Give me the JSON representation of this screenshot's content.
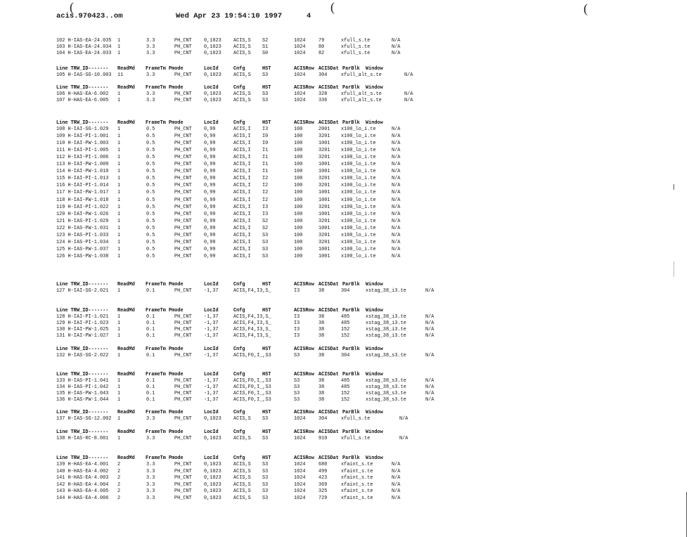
{
  "page_header": {
    "filename": "acis.970423..om",
    "datetime": "Wed Apr 23 19:54:10 1997",
    "page_number": "4"
  },
  "column_headers": [
    "Line TRW_ID-------",
    "ReadMd",
    "FrameTm",
    "Pmode",
    "LocId",
    "Cnfg",
    "HST",
    "ACISRow",
    "ACISDat",
    "ParBlk",
    "Window"
  ],
  "blocks": [
    {
      "header": false,
      "rows": [
        [
          "102 H-IAS-EA-24.035",
          "1",
          "3.3",
          "PH_CNT",
          "0,1023",
          "ACIS,S",
          "S2",
          "1024",
          "79",
          "xfull_s.te",
          "N/A"
        ],
        [
          "103 H-IAS-EA-24.034",
          "1",
          "3.3",
          "PH_CNT",
          "0,1023",
          "ACIS,S",
          "S1",
          "1024",
          "80",
          "xfull_s.te",
          "N/A"
        ],
        [
          "104 H-IAS-EA-24.033",
          "1",
          "3.3",
          "PH_CNT",
          "0,1023",
          "ACIS,S",
          "S0",
          "1024",
          "82",
          "xfull_s.te",
          "N/A"
        ]
      ]
    },
    {
      "header": true,
      "rows": [
        [
          "105 H-IAS-SG-10.003",
          "11",
          "3.3",
          "PH_CNT",
          "0,1023",
          "ACIS,S",
          "S3",
          "1024",
          "304",
          "xfull_alt_s.te",
          "N/A"
        ]
      ]
    },
    {
      "header": true,
      "rows": [
        [
          "106 H-HAS-EA-6.002",
          "1",
          "3.3",
          "PH_CNT",
          "0,1023",
          "ACIS,S",
          "S3",
          "1024",
          "328",
          "xfull_alt_s.te",
          "N/A"
        ],
        [
          "107 H-HAS-EA-6.005",
          "1",
          "3.3",
          "PH_CNT",
          "0,1023",
          "ACIS,S",
          "S3",
          "1024",
          "336",
          "xfull_alt_s.te",
          "N/A"
        ]
      ]
    },
    {
      "header": true,
      "rows": [
        [
          "108 H-IAI-SG-1.029",
          "1",
          "0.5",
          "PH_CNT",
          "0,99",
          "ACIS,I",
          "I3",
          "100",
          "2001",
          "x100_lo_i.te",
          "N/A"
        ],
        [
          "109 H-IAI-PI-1.001",
          "1",
          "0.5",
          "PH_CNT",
          "0,99",
          "ACIS,I",
          "I0",
          "100",
          "3201",
          "x100_lo_i.te",
          "N/A"
        ],
        [
          "110 H-IAI-PW-1.003",
          "1",
          "0.5",
          "PH_CNT",
          "0,99",
          "ACIS,I",
          "I0",
          "100",
          "1001",
          "x100_lo_i.te",
          "N/A"
        ],
        [
          "111 H-IAI-PI-1.005",
          "1",
          "0.5",
          "PH_CNT",
          "0,99",
          "ACIS,I",
          "I1",
          "100",
          "3201",
          "x100_lo_i.te",
          "N/A"
        ],
        [
          "112 H-IAI-PI-1.006",
          "1",
          "0.5",
          "PH_CNT",
          "0,99",
          "ACIS,I",
          "I1",
          "100",
          "3201",
          "x100_lo_i.te",
          "N/A"
        ],
        [
          "113 H-IAI-PW-1.009",
          "1",
          "0.5",
          "PH_CNT",
          "0,99",
          "ACIS,I",
          "I1",
          "100",
          "1001",
          "x100_lo_i.te",
          "N/A"
        ],
        [
          "114 H-IAI-PW-1.010",
          "1",
          "0.5",
          "PH_CNT",
          "0,99",
          "ACIS,I",
          "I1",
          "100",
          "1001",
          "x100_lo_i.te",
          "N/A"
        ],
        [
          "115 H-IAI-PI-1.013",
          "1",
          "0.5",
          "PH_CNT",
          "0,99",
          "ACIS,I",
          "I2",
          "100",
          "3201",
          "x100_lo_i.te",
          "N/A"
        ],
        [
          "116 H-IAI-PI-1.014",
          "1",
          "0.5",
          "PH_CNT",
          "0,99",
          "ACIS,I",
          "I2",
          "100",
          "3201",
          "x100_lo_i.te",
          "N/A"
        ],
        [
          "117 H-IAI-PW-1.017",
          "1",
          "0.5",
          "PH_CNT",
          "0,99",
          "ACIS,I",
          "I2",
          "100",
          "1001",
          "x100_lo_i.te",
          "N/A"
        ],
        [
          "118 H-IAI-PW-1.018",
          "1",
          "0.5",
          "PH_CNT",
          "0,99",
          "ACIS,I",
          "I2",
          "100",
          "1001",
          "x100_lo_i.te",
          "N/A"
        ],
        [
          "119 H-IAI-PI-1.022",
          "1",
          "0.5",
          "PH_CNT",
          "0,99",
          "ACIS,I",
          "I3",
          "100",
          "3201",
          "x100_lo_i.te",
          "N/A"
        ],
        [
          "120 H-IAI-PW-1.026",
          "1",
          "0.5",
          "PH_CNT",
          "0,99",
          "ACIS,I",
          "I3",
          "100",
          "1001",
          "x100_lo_i.te",
          "N/A"
        ],
        [
          "121 H-IAS-PI-1.029",
          "1",
          "0.5",
          "PH_CNT",
          "0,99",
          "ACIS,I",
          "S2",
          "100",
          "3201",
          "x100_lo_i.te",
          "N/A"
        ],
        [
          "122 H-IAS-PW-1.031",
          "1",
          "0.5",
          "PH_CNT",
          "0,99",
          "ACIS,I",
          "S2",
          "100",
          "1001",
          "x100_lo_i.te",
          "N/A"
        ],
        [
          "123 H-IAS-PI-1.033",
          "1",
          "0.5",
          "PH_CNT",
          "0,99",
          "ACIS,I",
          "S3",
          "100",
          "3201",
          "x100_lo_i.te",
          "N/A"
        ],
        [
          "124 H-IAS-PI-1.034",
          "1",
          "0.5",
          "PH_CNT",
          "0,99",
          "ACIS,I",
          "S3",
          "100",
          "3201",
          "x100_lo_i.te",
          "N/A"
        ],
        [
          "125 H-IAS-PW-1.037",
          "1",
          "0.5",
          "PH_CNT",
          "0,99",
          "ACIS,I",
          "S3",
          "100",
          "1001",
          "x100_lo_i.te",
          "N/A"
        ],
        [
          "126 H-IAS-PW-1.038",
          "1",
          "0.5",
          "PH_CNT",
          "0,99",
          "ACIS,I",
          "S3",
          "100",
          "1001",
          "x100_lo_i.te",
          "N/A"
        ]
      ]
    },
    {
      "header": true,
      "rows": [
        [
          "127 H-IAI-SG-2.021",
          "1",
          "0.1",
          "PH_CNT",
          "-1,37",
          "ACIS,F4,I3,S_",
          "I3",
          "38",
          "304",
          "xstag_38_i3.te",
          "N/A"
        ]
      ]
    },
    {
      "header": true,
      "rows": [
        [
          "128 H-IAI-PI-1.021",
          "1",
          "0.1",
          "PH_CNT",
          "-1,37",
          "ACIS,F4,I3,S_",
          "I3",
          "38",
          "485",
          "xstag_38_i3.te",
          "N/A"
        ],
        [
          "129 H-IAI-PI-1.023",
          "1",
          "0.1",
          "PH_CNT",
          "-1,37",
          "ACIS,F4,I3,S_",
          "I3",
          "38",
          "485",
          "xstag_38_i3.te",
          "N/A"
        ],
        [
          "130 H-IAI-PW-1.025",
          "1",
          "0.1",
          "PH_CNT",
          "-1,37",
          "ACIS,F4,I3,S_",
          "I3",
          "38",
          "152",
          "xstag_38_i3.te",
          "N/A"
        ],
        [
          "131 H-IAI-PW-1.027",
          "1",
          "0.1",
          "PH_CNT",
          "-1,37",
          "ACIS,F4,I3,S_",
          "I3",
          "38",
          "152",
          "xstag_38_i3.te",
          "N/A"
        ]
      ]
    },
    {
      "header": true,
      "rows": [
        [
          "132 H-IAS-SG-2.022",
          "1",
          "0.1",
          "PH_CNT",
          "-1,37",
          "ACIS,F0,I_,S3",
          "S3",
          "38",
          "304",
          "xstag_38_s3.te",
          "N/A"
        ]
      ]
    },
    {
      "header": true,
      "rows": [
        [
          "133 H-IAS-PI-1.041",
          "1",
          "0.1",
          "PH_CNT",
          "-1,37",
          "ACIS,F0,I_,S3",
          "S3",
          "38",
          "485",
          "xstag_38_s3.te",
          "N/A"
        ],
        [
          "134 H-IAS-PI-1.042",
          "1",
          "0.1",
          "PH_CNT",
          "-1,37",
          "ACIS,F0,I_,S3",
          "S3",
          "38",
          "485",
          "xstag_38_s3.te",
          "N/A"
        ],
        [
          "135 H-IAS-PW-1.043",
          "1",
          "0.1",
          "PH_CNT",
          "-1,37",
          "ACIS,F0,I_,S3",
          "S3",
          "38",
          "152",
          "xstag_38_s3.te",
          "N/A"
        ],
        [
          "136 H-IAS-PW-1.044",
          "1",
          "0.1",
          "PH_CNT",
          "-1,37",
          "ACIS,F0,I_,S3",
          "S3",
          "38",
          "152",
          "xstag_38_s3.te",
          "N/A"
        ]
      ]
    },
    {
      "header": true,
      "rows": [
        [
          "137 H-IAS-SG-12.002",
          "1",
          "3.3",
          "PH_CNT",
          "0,1023",
          "ACIS,S",
          "S3",
          "1024",
          "304",
          "xfull_s.te",
          "N/A"
        ]
      ]
    },
    {
      "header": true,
      "rows": [
        [
          "138 H-IAS-RC-8.001",
          "1",
          "3.3",
          "PH_CNT",
          "0,1023",
          "ACIS,S",
          "S3",
          "1024",
          "910",
          "xfull_s.te",
          "N/A"
        ]
      ]
    },
    {
      "header": true,
      "rows": [
        [
          "139 H-HAS-EA-4.001",
          "2",
          "3.3",
          "PH_CNT",
          "0,1023",
          "ACIS,S",
          "S3",
          "1024",
          "680",
          "xfaint_s.te",
          "N/A"
        ],
        [
          "140 H-HAS-EA-4.002",
          "2",
          "3.3",
          "PH_CNT",
          "0,1023",
          "ACIS,S",
          "S3",
          "1024",
          "499",
          "xfaint_s.te",
          "N/A"
        ],
        [
          "141 H-HAS-EA-4.003",
          "2",
          "3.3",
          "PH_CNT",
          "0,1023",
          "ACIS,S",
          "S3",
          "1024",
          "423",
          "xfaint_s.te",
          "N/A"
        ],
        [
          "142 H-HAS-EA-4.004",
          "2",
          "3.3",
          "PH_CNT",
          "0,1023",
          "ACIS,S",
          "S3",
          "1024",
          "369",
          "xfaint_s.te",
          "N/A"
        ],
        [
          "143 H-HAS-EA-4.005",
          "2",
          "3.3",
          "PH_CNT",
          "0,1023",
          "ACIS,S",
          "S3",
          "1024",
          "325",
          "xfaint_s.te",
          "N/A"
        ],
        [
          "144 H-HAS-EA-4.006",
          "2",
          "3.3",
          "PH_CNT",
          "0,1023",
          "ACIS,S",
          "S3",
          "1024",
          "729",
          "xfaint_s.te",
          "N/A"
        ]
      ]
    }
  ]
}
